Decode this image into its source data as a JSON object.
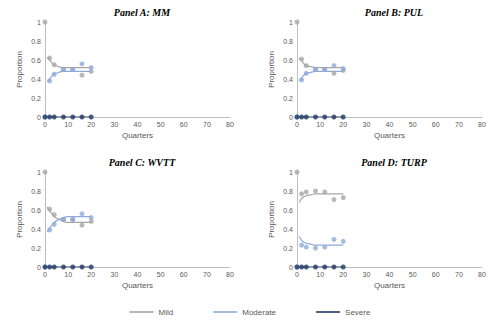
{
  "chart_data": [
    {
      "type": "scatter",
      "title": "Panel A: MM",
      "x_label": "Quarters",
      "y_label": "Proportion",
      "xlim": [
        0,
        80
      ],
      "xticks": [
        0,
        10,
        20,
        30,
        40,
        50,
        60,
        70,
        80
      ],
      "ylim": [
        0,
        1
      ],
      "yticks": [
        0,
        0.2,
        0.4,
        0.6,
        0.8,
        1
      ],
      "grid": false,
      "legend": "bottom",
      "series": [
        {
          "name": "Mild",
          "type": "scatter",
          "marker": "circle",
          "color": "#a6a6a6",
          "x": [
            0,
            2,
            4,
            8,
            12,
            16,
            20
          ],
          "values": [
            1,
            0.62,
            0.55,
            0.5,
            0.5,
            0.44,
            0.48
          ]
        },
        {
          "name": "Mild",
          "type": "line",
          "line_style": "solid",
          "color": "#a6a6a6",
          "x": [
            1,
            2,
            3,
            4,
            6,
            8,
            10,
            12,
            14,
            16,
            18,
            20
          ],
          "values": [
            0.63,
            0.6,
            0.57,
            0.55,
            0.53,
            0.52,
            0.52,
            0.52,
            0.52,
            0.52,
            0.52,
            0.52
          ]
        },
        {
          "name": "Moderate",
          "type": "scatter",
          "marker": "circle",
          "color": "#8eaadb",
          "x": [
            0,
            2,
            4,
            8,
            12,
            16,
            20
          ],
          "values": [
            0,
            0.38,
            0.45,
            0.5,
            0.5,
            0.56,
            0.52
          ]
        },
        {
          "name": "Moderate",
          "type": "line",
          "line_style": "solid",
          "color": "#8eaadb",
          "x": [
            1,
            2,
            3,
            4,
            6,
            8,
            10,
            12,
            14,
            16,
            18,
            20
          ],
          "values": [
            0.37,
            0.4,
            0.43,
            0.45,
            0.47,
            0.48,
            0.48,
            0.48,
            0.48,
            0.48,
            0.48,
            0.48
          ]
        },
        {
          "name": "Severe",
          "type": "scatter",
          "marker": "circle",
          "color": "#1f3864",
          "x": [
            0,
            2,
            4,
            8,
            12,
            16,
            20
          ],
          "values": [
            0,
            0,
            0,
            0,
            0,
            0,
            0
          ]
        },
        {
          "name": "Severe",
          "type": "line",
          "line_style": "solid",
          "color": "#1f3864",
          "x": [
            0,
            20
          ],
          "values": [
            0,
            0
          ]
        }
      ]
    },
    {
      "type": "scatter",
      "title": "Panel B: PUL",
      "x_label": "Quarters",
      "y_label": "Proportion",
      "xlim": [
        0,
        80
      ],
      "xticks": [
        0,
        10,
        20,
        30,
        40,
        50,
        60,
        70,
        80
      ],
      "ylim": [
        0,
        1
      ],
      "yticks": [
        0,
        0.2,
        0.4,
        0.6,
        0.8,
        1
      ],
      "grid": false,
      "legend": "bottom",
      "series": [
        {
          "name": "Mild",
          "type": "scatter",
          "marker": "circle",
          "color": "#a6a6a6",
          "x": [
            0,
            2,
            4,
            8,
            12,
            16,
            20
          ],
          "values": [
            1,
            0.61,
            0.54,
            0.5,
            0.5,
            0.46,
            0.49
          ]
        },
        {
          "name": "Mild",
          "type": "line",
          "line_style": "solid",
          "color": "#a6a6a6",
          "x": [
            1,
            2,
            3,
            4,
            6,
            8,
            10,
            12,
            14,
            16,
            18,
            20
          ],
          "values": [
            0.62,
            0.59,
            0.56,
            0.54,
            0.53,
            0.52,
            0.52,
            0.52,
            0.52,
            0.52,
            0.52,
            0.52
          ]
        },
        {
          "name": "Moderate",
          "type": "scatter",
          "marker": "circle",
          "color": "#8eaadb",
          "x": [
            0,
            2,
            4,
            8,
            12,
            16,
            20
          ],
          "values": [
            0,
            0.39,
            0.46,
            0.5,
            0.5,
            0.54,
            0.51
          ]
        },
        {
          "name": "Moderate",
          "type": "line",
          "line_style": "solid",
          "color": "#8eaadb",
          "x": [
            1,
            2,
            3,
            4,
            6,
            8,
            10,
            12,
            14,
            16,
            18,
            20
          ],
          "values": [
            0.38,
            0.41,
            0.44,
            0.46,
            0.47,
            0.48,
            0.48,
            0.48,
            0.48,
            0.48,
            0.48,
            0.48
          ]
        },
        {
          "name": "Severe",
          "type": "scatter",
          "marker": "circle",
          "color": "#1f3864",
          "x": [
            0,
            2,
            4,
            8,
            12,
            16,
            20
          ],
          "values": [
            0,
            0,
            0,
            0,
            0,
            0,
            0
          ]
        },
        {
          "name": "Severe",
          "type": "line",
          "line_style": "solid",
          "color": "#1f3864",
          "x": [
            0,
            20
          ],
          "values": [
            0,
            0
          ]
        }
      ]
    },
    {
      "type": "scatter",
      "title": "Panel C: WVTT",
      "x_label": "Quarters",
      "y_label": "Proportion",
      "xlim": [
        0,
        80
      ],
      "xticks": [
        0,
        10,
        20,
        30,
        40,
        50,
        60,
        70,
        80
      ],
      "ylim": [
        0,
        1
      ],
      "yticks": [
        0,
        0.2,
        0.4,
        0.6,
        0.8,
        1
      ],
      "grid": false,
      "legend": "bottom",
      "series": [
        {
          "name": "Mild",
          "type": "scatter",
          "marker": "circle",
          "color": "#a6a6a6",
          "x": [
            0,
            2,
            4,
            8,
            12,
            16,
            20
          ],
          "values": [
            1,
            0.61,
            0.55,
            0.5,
            0.5,
            0.44,
            0.48
          ]
        },
        {
          "name": "Mild",
          "type": "line",
          "line_style": "solid",
          "color": "#a6a6a6",
          "x": [
            1,
            2,
            3,
            4,
            6,
            8,
            10,
            12,
            14,
            16,
            18,
            20
          ],
          "values": [
            0.63,
            0.59,
            0.56,
            0.53,
            0.5,
            0.48,
            0.47,
            0.47,
            0.47,
            0.47,
            0.47,
            0.47
          ]
        },
        {
          "name": "Moderate",
          "type": "scatter",
          "marker": "circle",
          "color": "#8eaadb",
          "x": [
            0,
            2,
            4,
            8,
            12,
            16,
            20
          ],
          "values": [
            0,
            0.39,
            0.45,
            0.5,
            0.5,
            0.56,
            0.52
          ]
        },
        {
          "name": "Moderate",
          "type": "line",
          "line_style": "solid",
          "color": "#8eaadb",
          "x": [
            1,
            2,
            3,
            4,
            6,
            8,
            10,
            12,
            14,
            16,
            18,
            20
          ],
          "values": [
            0.37,
            0.41,
            0.44,
            0.47,
            0.5,
            0.52,
            0.53,
            0.53,
            0.53,
            0.53,
            0.53,
            0.53
          ]
        },
        {
          "name": "Severe",
          "type": "scatter",
          "marker": "circle",
          "color": "#1f3864",
          "x": [
            0,
            2,
            4,
            8,
            12,
            16,
            20
          ],
          "values": [
            0,
            0,
            0,
            0,
            0,
            0,
            0
          ]
        },
        {
          "name": "Severe",
          "type": "line",
          "line_style": "solid",
          "color": "#1f3864",
          "x": [
            0,
            20
          ],
          "values": [
            0,
            0
          ]
        }
      ]
    },
    {
      "type": "scatter",
      "title": "Panel D: TURP",
      "x_label": "Quarters",
      "y_label": "Proportion",
      "xlim": [
        0,
        80
      ],
      "xticks": [
        0,
        10,
        20,
        30,
        40,
        50,
        60,
        70,
        80
      ],
      "ylim": [
        0,
        1
      ],
      "yticks": [
        0,
        0.2,
        0.4,
        0.6,
        0.8,
        1
      ],
      "grid": false,
      "legend": "bottom",
      "series": [
        {
          "name": "Mild",
          "type": "scatter",
          "marker": "circle",
          "color": "#a6a6a6",
          "x": [
            0,
            2,
            4,
            8,
            12,
            16,
            20
          ],
          "values": [
            1,
            0.77,
            0.79,
            0.8,
            0.79,
            0.71,
            0.73
          ]
        },
        {
          "name": "Mild",
          "type": "line",
          "line_style": "solid",
          "color": "#a6a6a6",
          "x": [
            1,
            2,
            3,
            4,
            6,
            8,
            10,
            12,
            14,
            16,
            18,
            20
          ],
          "values": [
            0.68,
            0.72,
            0.74,
            0.75,
            0.76,
            0.77,
            0.77,
            0.77,
            0.77,
            0.77,
            0.77,
            0.77
          ]
        },
        {
          "name": "Moderate",
          "type": "scatter",
          "marker": "circle",
          "color": "#8eaadb",
          "x": [
            0,
            2,
            4,
            8,
            12,
            16,
            20
          ],
          "values": [
            0,
            0.23,
            0.21,
            0.2,
            0.21,
            0.29,
            0.27
          ]
        },
        {
          "name": "Moderate",
          "type": "line",
          "line_style": "solid",
          "color": "#8eaadb",
          "x": [
            1,
            2,
            3,
            4,
            6,
            8,
            10,
            12,
            14,
            16,
            18,
            20
          ],
          "values": [
            0.32,
            0.28,
            0.26,
            0.25,
            0.24,
            0.23,
            0.23,
            0.23,
            0.23,
            0.23,
            0.23,
            0.23
          ]
        },
        {
          "name": "Severe",
          "type": "scatter",
          "marker": "circle",
          "color": "#1f3864",
          "x": [
            0,
            2,
            4,
            8,
            12,
            16,
            20
          ],
          "values": [
            0,
            0,
            0,
            0,
            0,
            0,
            0
          ]
        },
        {
          "name": "Severe",
          "type": "line",
          "line_style": "solid",
          "color": "#1f3864",
          "x": [
            0,
            20
          ],
          "values": [
            0,
            0
          ]
        }
      ]
    }
  ]
}
